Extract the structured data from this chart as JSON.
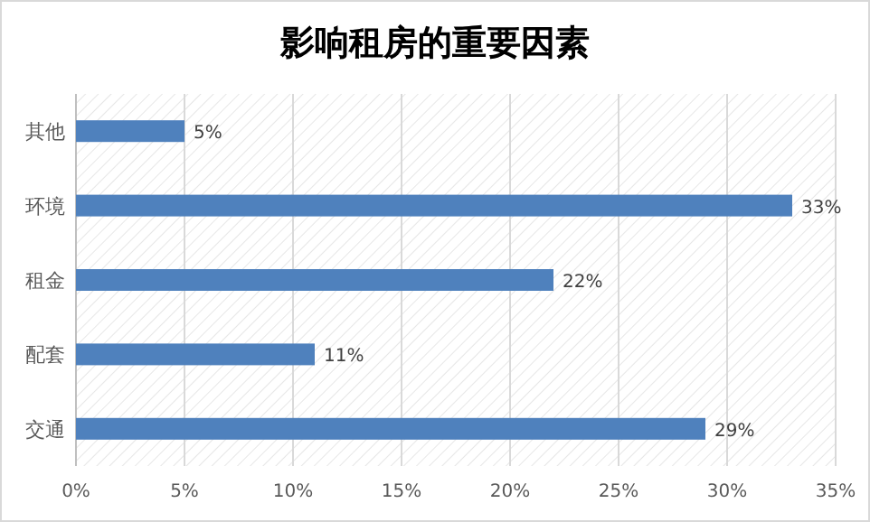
{
  "chart_data": {
    "type": "bar",
    "orientation": "horizontal",
    "title": "影响租房的重要因素",
    "categories": [
      "其他",
      "环境",
      "租金",
      "配套",
      "交通"
    ],
    "values": [
      5,
      33,
      22,
      11,
      29
    ],
    "value_labels": [
      "5%",
      "33%",
      "22%",
      "11%",
      "29%"
    ],
    "color": "#4f81bd",
    "xlim": [
      0,
      35
    ],
    "xticks": [
      {
        "value": 0,
        "label": "0%"
      },
      {
        "value": 5,
        "label": "5%"
      },
      {
        "value": 10,
        "label": "10%"
      },
      {
        "value": 15,
        "label": "15%"
      },
      {
        "value": 20,
        "label": "20%"
      },
      {
        "value": 25,
        "label": "25%"
      },
      {
        "value": 30,
        "label": "30%"
      },
      {
        "value": 35,
        "label": "35%"
      }
    ],
    "grid": "x"
  }
}
